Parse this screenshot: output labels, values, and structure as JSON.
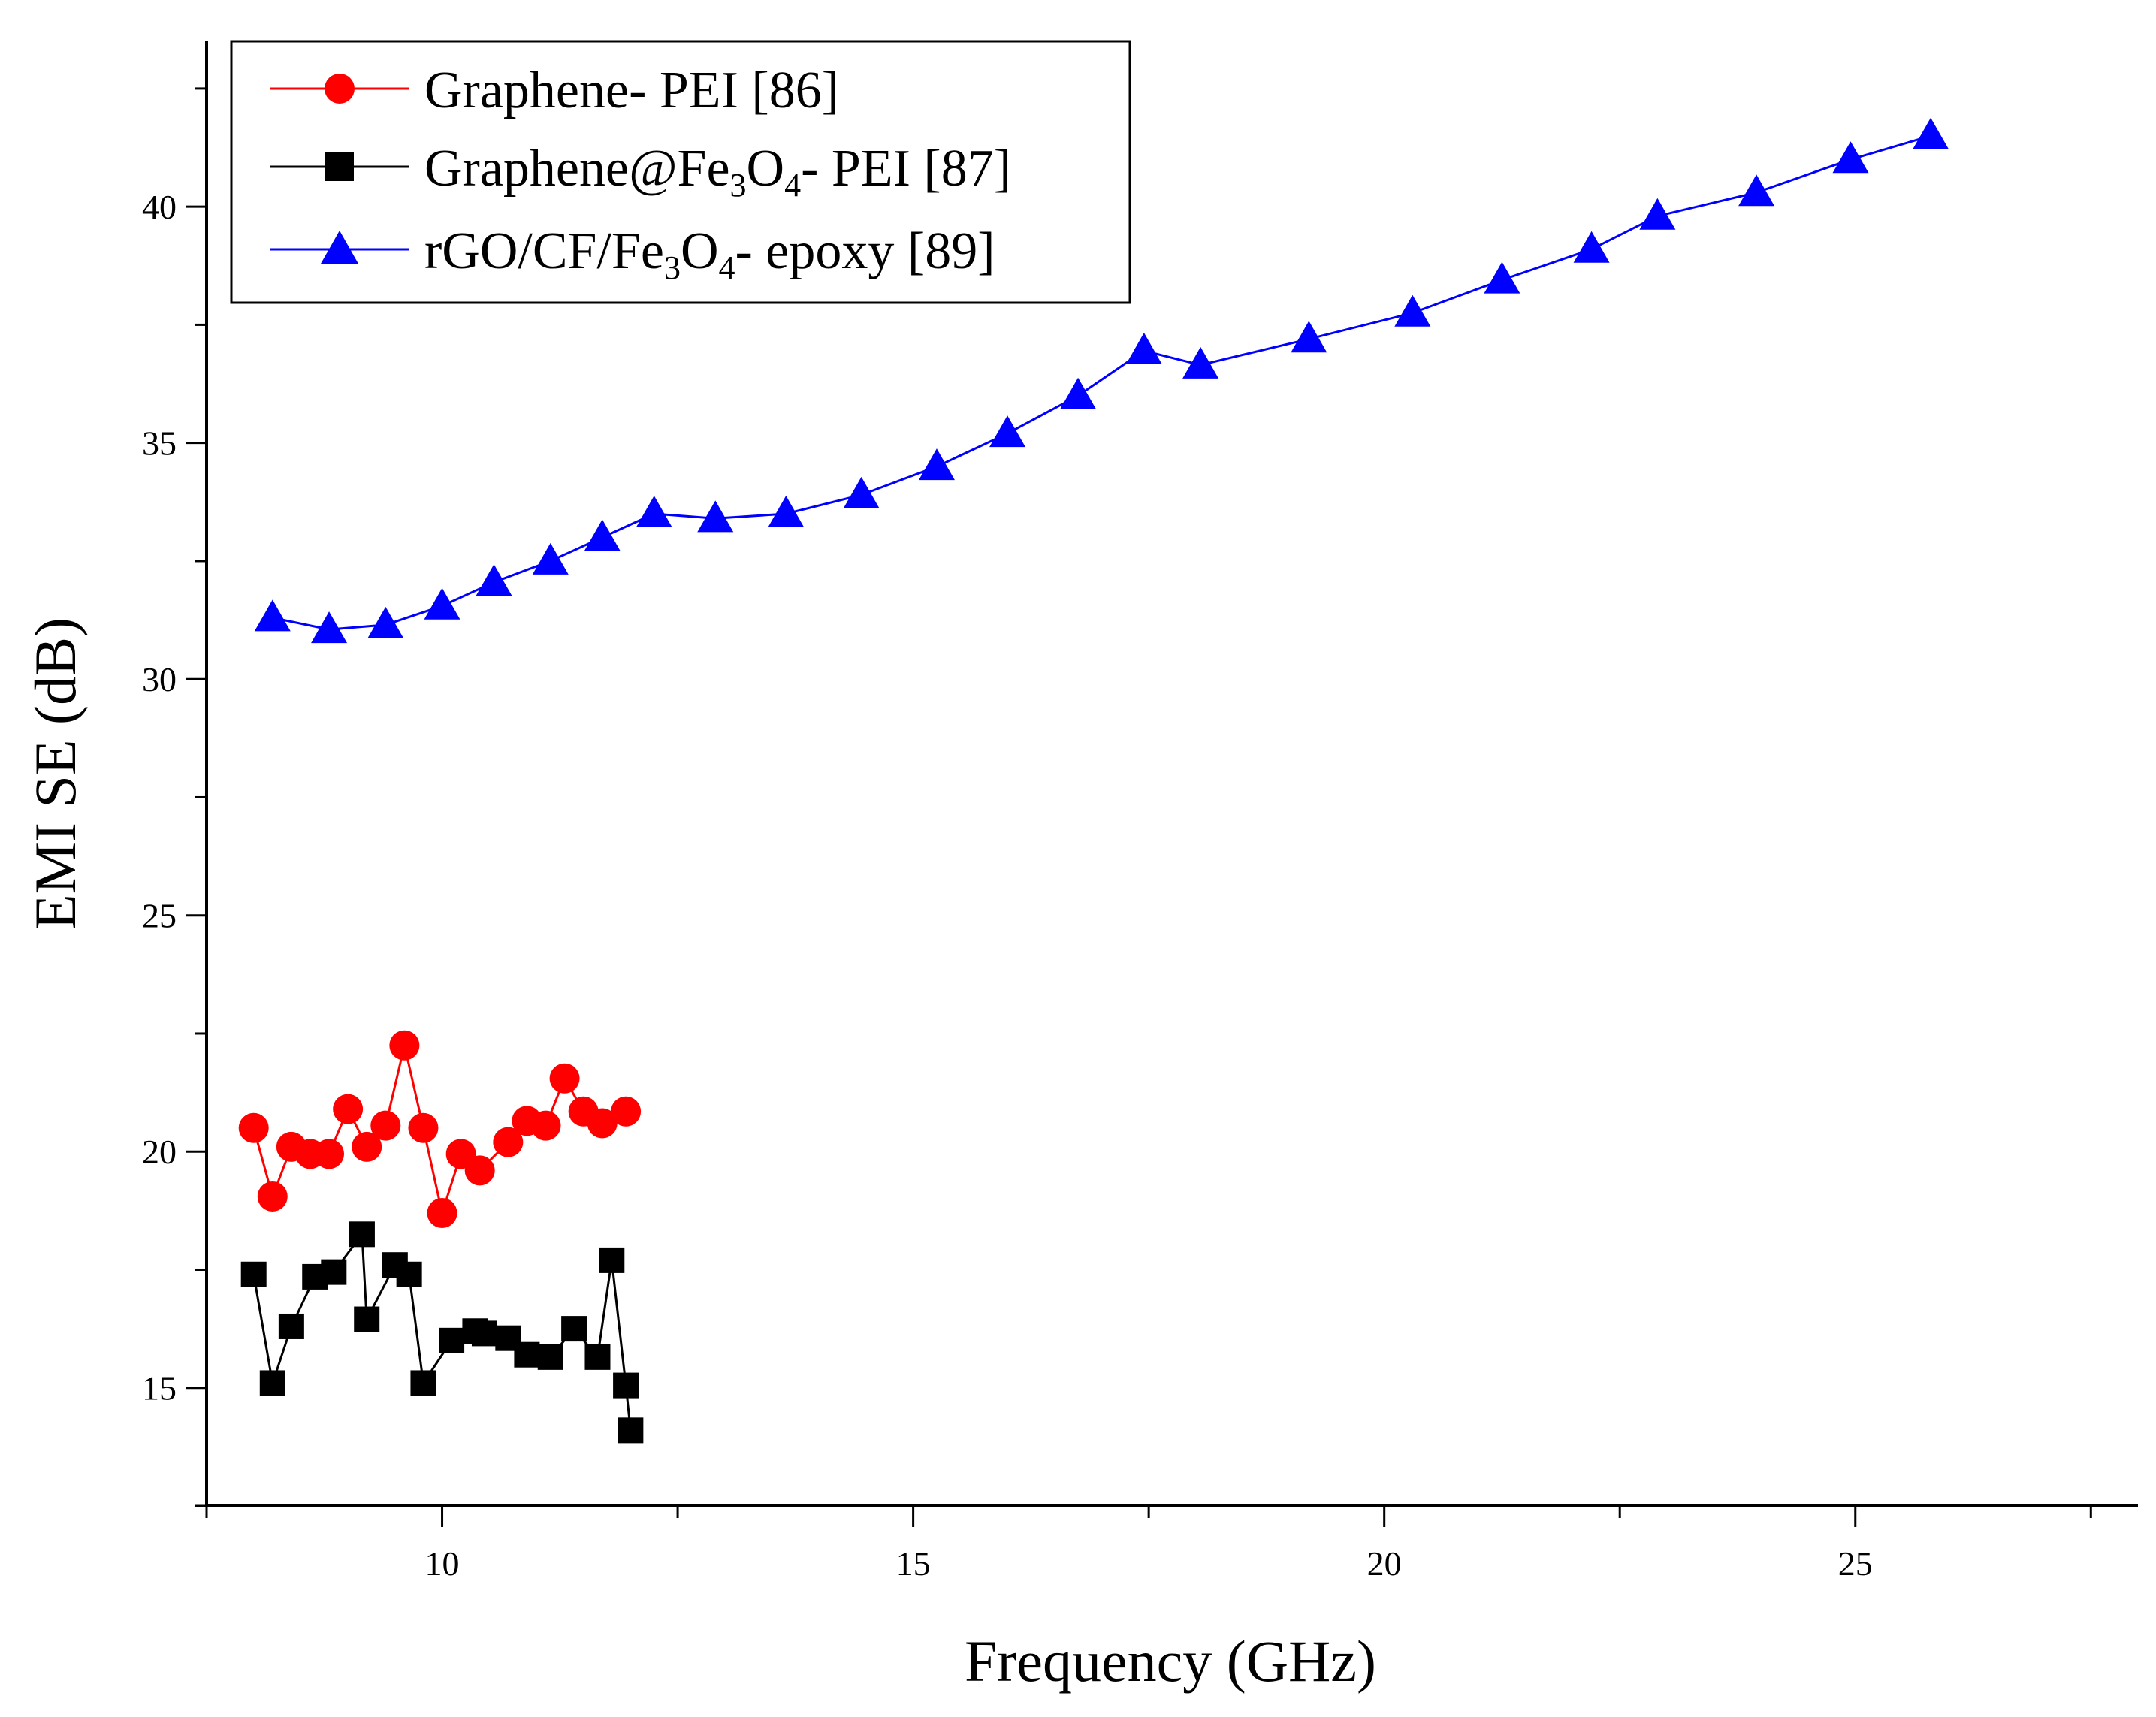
{
  "chart_data": {
    "type": "line",
    "title": "",
    "xlabel": "Frequency (GHz)",
    "ylabel": "EMI SE (dB)",
    "xlim": [
      7.5,
      28.0
    ],
    "ylim": [
      12.5,
      43.5
    ],
    "xticks": [
      10,
      15,
      20,
      25
    ],
    "yticks": [
      15,
      20,
      25,
      30,
      35,
      40
    ],
    "xtick_labels": [
      "10",
      "15",
      "20",
      "25"
    ],
    "ytick_labels": [
      "15",
      "20",
      "25",
      "30",
      "35",
      "40"
    ],
    "legend_position": "top-left",
    "series": [
      {
        "name": "Graphene- PEI [86]",
        "legend": {
          "main": "Graphene- PEI [86]"
        },
        "color": "#ff0000",
        "marker": "circle",
        "x": [
          8.0,
          8.2,
          8.4,
          8.6,
          8.8,
          9.0,
          9.2,
          9.4,
          9.6,
          9.8,
          10.0,
          10.2,
          10.4,
          10.7,
          10.9,
          11.1,
          11.3,
          11.5,
          11.7,
          11.95
        ],
        "y": [
          20.5,
          19.05,
          20.1,
          19.95,
          19.95,
          20.9,
          20.1,
          20.55,
          22.25,
          20.5,
          18.7,
          19.95,
          19.6,
          20.2,
          20.65,
          20.55,
          21.55,
          20.85,
          20.6,
          20.85
        ]
      },
      {
        "name": "Graphene@Fe3O4- PEI [87]",
        "legend": {
          "main": "Graphene@Fe",
          "sub1": "3",
          "mid": "O",
          "sub2": "4",
          "tail": "- PEI [87]"
        },
        "color": "#000000",
        "marker": "square",
        "x": [
          8.0,
          8.2,
          8.4,
          8.65,
          8.85,
          9.15,
          9.2,
          9.5,
          9.65,
          9.8,
          10.1,
          10.35,
          10.45,
          10.7,
          10.9,
          11.15,
          11.4,
          11.65,
          11.8,
          11.95,
          12.0
        ],
        "y": [
          17.4,
          15.1,
          16.3,
          17.35,
          17.45,
          18.25,
          16.45,
          17.6,
          17.4,
          15.1,
          16.0,
          16.2,
          16.15,
          16.05,
          15.7,
          15.65,
          16.25,
          15.65,
          17.7,
          15.05,
          14.1
        ]
      },
      {
        "name": "rGO/CF/Fe3O4- epoxy [89]",
        "legend": {
          "main": "rGO/CF/Fe",
          "sub1": "3",
          "mid": "O",
          "sub2": "4",
          "tail": "- epoxy [89]"
        },
        "color": "#0000ff",
        "marker": "triangle",
        "x": [
          8.2,
          8.8,
          9.4,
          10.0,
          10.55,
          11.15,
          11.7,
          12.25,
          12.9,
          13.65,
          14.45,
          15.25,
          16.0,
          16.75,
          17.45,
          18.05,
          19.2,
          20.3,
          21.25,
          22.2,
          22.9,
          23.95,
          24.95,
          25.8
        ],
        "y": [
          31.3,
          31.05,
          31.15,
          31.55,
          32.05,
          32.5,
          33.0,
          33.5,
          33.4,
          33.5,
          33.9,
          34.5,
          35.2,
          36.0,
          36.95,
          36.65,
          37.2,
          37.75,
          38.45,
          39.1,
          39.8,
          40.3,
          41.0,
          41.5
        ]
      }
    ]
  }
}
